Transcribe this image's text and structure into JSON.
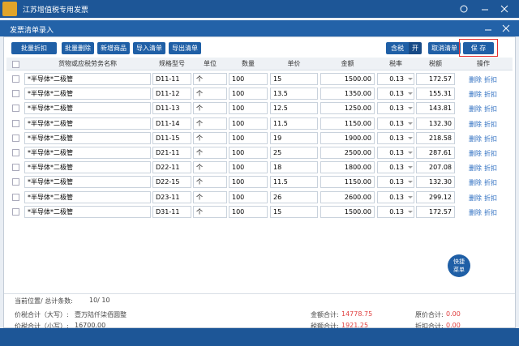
{
  "app": {
    "title": "江苏增值税专用发票"
  },
  "dialog": {
    "title": "发票清单录入",
    "toolbar": [
      "批量折扣",
      "批量删除",
      "新增商品",
      "导入清单",
      "导出清单"
    ],
    "tax_toggle": {
      "label": "含税",
      "state": "开"
    },
    "cancel": "取消清单",
    "save": "保 存"
  },
  "table": {
    "headers": [
      "货物或应税劳务名称",
      "规格型号",
      "单位",
      "数量",
      "单价",
      "金额",
      "税率",
      "税额",
      "操作"
    ],
    "rows": [
      {
        "name": "*半导体*二极管",
        "spec": "D11-11",
        "unit": "个",
        "qty": "100",
        "price": "15",
        "amount": "1500.00",
        "rate": "0.13",
        "tax": "172.57",
        "delete": "删除",
        "discount": "折扣"
      },
      {
        "name": "*半导体*二极管",
        "spec": "D11-12",
        "unit": "个",
        "qty": "100",
        "price": "13.5",
        "amount": "1350.00",
        "rate": "0.13",
        "tax": "155.31",
        "delete": "删除",
        "discount": "折扣"
      },
      {
        "name": "*半导体*二极管",
        "spec": "D11-13",
        "unit": "个",
        "qty": "100",
        "price": "12.5",
        "amount": "1250.00",
        "rate": "0.13",
        "tax": "143.81",
        "delete": "删除",
        "discount": "折扣"
      },
      {
        "name": "*半导体*二极管",
        "spec": "D11-14",
        "unit": "个",
        "qty": "100",
        "price": "11.5",
        "amount": "1150.00",
        "rate": "0.13",
        "tax": "132.30",
        "delete": "删除",
        "discount": "折扣"
      },
      {
        "name": "*半导体*二极管",
        "spec": "D11-15",
        "unit": "个",
        "qty": "100",
        "price": "19",
        "amount": "1900.00",
        "rate": "0.13",
        "tax": "218.58",
        "delete": "删除",
        "discount": "折扣"
      },
      {
        "name": "*半导体*二极管",
        "spec": "D21-11",
        "unit": "个",
        "qty": "100",
        "price": "25",
        "amount": "2500.00",
        "rate": "0.13",
        "tax": "287.61",
        "delete": "删除",
        "discount": "折扣"
      },
      {
        "name": "*半导体*二极管",
        "spec": "D22-11",
        "unit": "个",
        "qty": "100",
        "price": "18",
        "amount": "1800.00",
        "rate": "0.13",
        "tax": "207.08",
        "delete": "删除",
        "discount": "折扣"
      },
      {
        "name": "*半导体*二极管",
        "spec": "D22-15",
        "unit": "个",
        "qty": "100",
        "price": "11.5",
        "amount": "1150.00",
        "rate": "0.13",
        "tax": "132.30",
        "delete": "删除",
        "discount": "折扣"
      },
      {
        "name": "*半导体*二极管",
        "spec": "D23-11",
        "unit": "个",
        "qty": "100",
        "price": "26",
        "amount": "2600.00",
        "rate": "0.13",
        "tax": "299.12",
        "delete": "删除",
        "discount": "折扣"
      },
      {
        "name": "*半导体*二极管",
        "spec": "D31-11",
        "unit": "个",
        "qty": "100",
        "price": "15",
        "amount": "1500.00",
        "rate": "0.13",
        "tax": "172.57",
        "delete": "删除",
        "discount": "折扣"
      }
    ]
  },
  "quick_menu": [
    "快捷",
    "菜单"
  ],
  "footer": {
    "position_label": "当前位置/ 总计条数:",
    "position_value": "10/ 10",
    "total_upper_label": "价税合计（大写）:",
    "total_upper": "壹万陆仟柒佰圆整",
    "total_lower_label": "价税合计（小写）:",
    "total_lower": "16700.00",
    "amount_label": "金额合计:",
    "amount": "14778.75",
    "tax_label": "税额合计:",
    "tax": "1921.25",
    "orig_label": "原价合计:",
    "orig": "0.00",
    "disc_label": "折扣合计:",
    "disc": "0.00"
  }
}
